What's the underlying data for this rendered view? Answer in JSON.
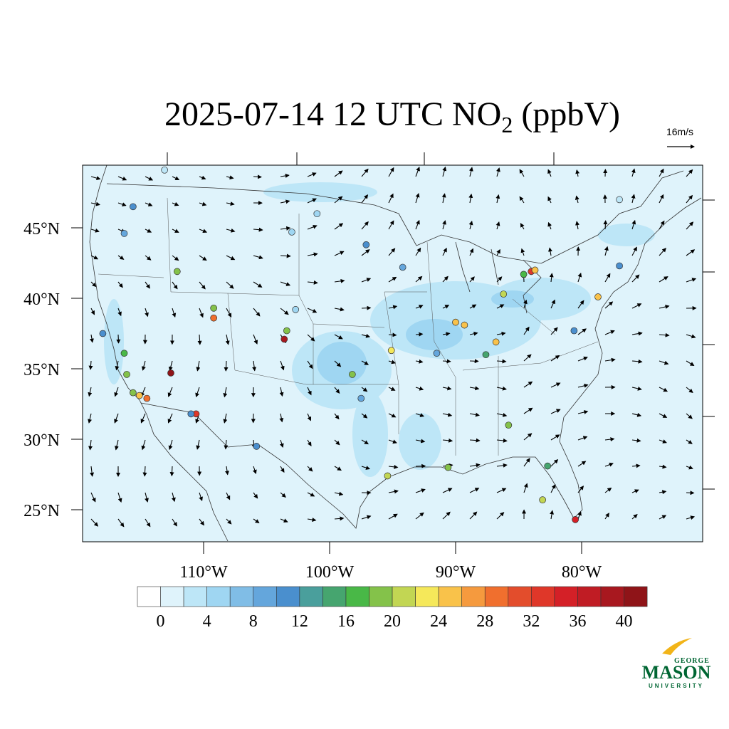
{
  "map": {
    "title": {
      "main": "2025-07-14 12 UTC NO",
      "subscript": "2",
      "tail": " (ppbV)"
    },
    "vector_reference": "16m/s",
    "lat_ticks": [
      {
        "value": 45,
        "label": "45°N"
      },
      {
        "value": 40,
        "label": "40°N"
      },
      {
        "value": 35,
        "label": "35°N"
      },
      {
        "value": 30,
        "label": "30°N"
      },
      {
        "value": 25,
        "label": "25°N"
      }
    ],
    "lon_ticks": [
      {
        "value": -110,
        "label": "110°W"
      },
      {
        "value": -100,
        "label": "100°W"
      },
      {
        "value": -90,
        "label": "90°W"
      },
      {
        "value": -80,
        "label": "80°W"
      }
    ],
    "colorbar": {
      "ticks": [
        0,
        4,
        8,
        12,
        16,
        20,
        24,
        28,
        32,
        36,
        40
      ],
      "colors": [
        "#ffffff",
        "#dff3fb",
        "#bde6f7",
        "#9fd6f2",
        "#80bde6",
        "#64a6dc",
        "#4a8fce",
        "#4a9f9c",
        "#46a56f",
        "#49b847",
        "#84c24a",
        "#c2d653",
        "#f5e85a",
        "#f9c24a",
        "#f59a3e",
        "#f06f2e",
        "#e34d2c",
        "#df3729",
        "#d42027",
        "#c01c24",
        "#a8181f",
        "#8f1418"
      ]
    },
    "stations": [
      {
        "lon": -115.6,
        "lat": 46.5,
        "value": 10
      },
      {
        "lon": -116.3,
        "lat": 44.6,
        "value": 8
      },
      {
        "lon": -112.1,
        "lat": 41.9,
        "value": 18
      },
      {
        "lon": -109.2,
        "lat": 39.3,
        "value": 18
      },
      {
        "lon": -109.2,
        "lat": 38.6,
        "value": 28
      },
      {
        "lon": -112.6,
        "lat": 34.7,
        "value": 40
      },
      {
        "lon": -110.6,
        "lat": 31.8,
        "value": 32
      },
      {
        "lon": -111.0,
        "lat": 31.8,
        "value": 10
      },
      {
        "lon": -118.0,
        "lat": 37.5,
        "value": 10
      },
      {
        "lon": -116.3,
        "lat": 36.1,
        "value": 16
      },
      {
        "lon": -116.1,
        "lat": 34.6,
        "value": 18
      },
      {
        "lon": -115.1,
        "lat": 33.1,
        "value": 24
      },
      {
        "lon": -114.5,
        "lat": 32.9,
        "value": 28
      },
      {
        "lon": -115.6,
        "lat": 33.3,
        "value": 18
      },
      {
        "lon": -103.6,
        "lat": 37.1,
        "value": 38
      },
      {
        "lon": -103.4,
        "lat": 37.7,
        "value": 18
      },
      {
        "lon": -105.8,
        "lat": 29.5,
        "value": 10
      },
      {
        "lon": -98.2,
        "lat": 34.6,
        "value": 18
      },
      {
        "lon": -97.5,
        "lat": 32.9,
        "value": 8
      },
      {
        "lon": -95.4,
        "lat": 27.4,
        "value": 20
      },
      {
        "lon": -95.1,
        "lat": 36.3,
        "value": 22
      },
      {
        "lon": -90.6,
        "lat": 28.0,
        "value": 18
      },
      {
        "lon": -90.0,
        "lat": 38.3,
        "value": 24
      },
      {
        "lon": -89.3,
        "lat": 38.1,
        "value": 24
      },
      {
        "lon": -86.2,
        "lat": 40.3,
        "value": 20
      },
      {
        "lon": -86.8,
        "lat": 36.9,
        "value": 24
      },
      {
        "lon": -87.6,
        "lat": 36.0,
        "value": 14
      },
      {
        "lon": -84.0,
        "lat": 41.9,
        "value": 32
      },
      {
        "lon": -84.6,
        "lat": 41.7,
        "value": 16
      },
      {
        "lon": -83.7,
        "lat": 42.0,
        "value": 24
      },
      {
        "lon": -85.8,
        "lat": 31.0,
        "value": 18
      },
      {
        "lon": -82.7,
        "lat": 28.1,
        "value": 14
      },
      {
        "lon": -83.1,
        "lat": 25.7,
        "value": 20
      },
      {
        "lon": -80.5,
        "lat": 24.3,
        "value": 34
      },
      {
        "lon": -78.7,
        "lat": 40.1,
        "value": 24
      },
      {
        "lon": -80.6,
        "lat": 37.7,
        "value": 10
      },
      {
        "lon": -77.0,
        "lat": 42.3,
        "value": 10
      },
      {
        "lon": -103.0,
        "lat": 44.7,
        "value": 4
      },
      {
        "lon": -97.1,
        "lat": 43.8,
        "value": 10
      },
      {
        "lon": -102.7,
        "lat": 39.2,
        "value": 4
      },
      {
        "lon": -101.0,
        "lat": 46.0,
        "value": 4
      },
      {
        "lon": -113.1,
        "lat": 49.1,
        "value": 2
      },
      {
        "lon": -94.2,
        "lat": 42.2,
        "value": 8
      },
      {
        "lon": -91.5,
        "lat": 36.1,
        "value": 8
      },
      {
        "lon": -77.0,
        "lat": 47.0,
        "value": 2
      }
    ],
    "logo": {
      "top": "GEORGE",
      "name": "MASON",
      "bottom": "UNIVERSITY"
    }
  }
}
